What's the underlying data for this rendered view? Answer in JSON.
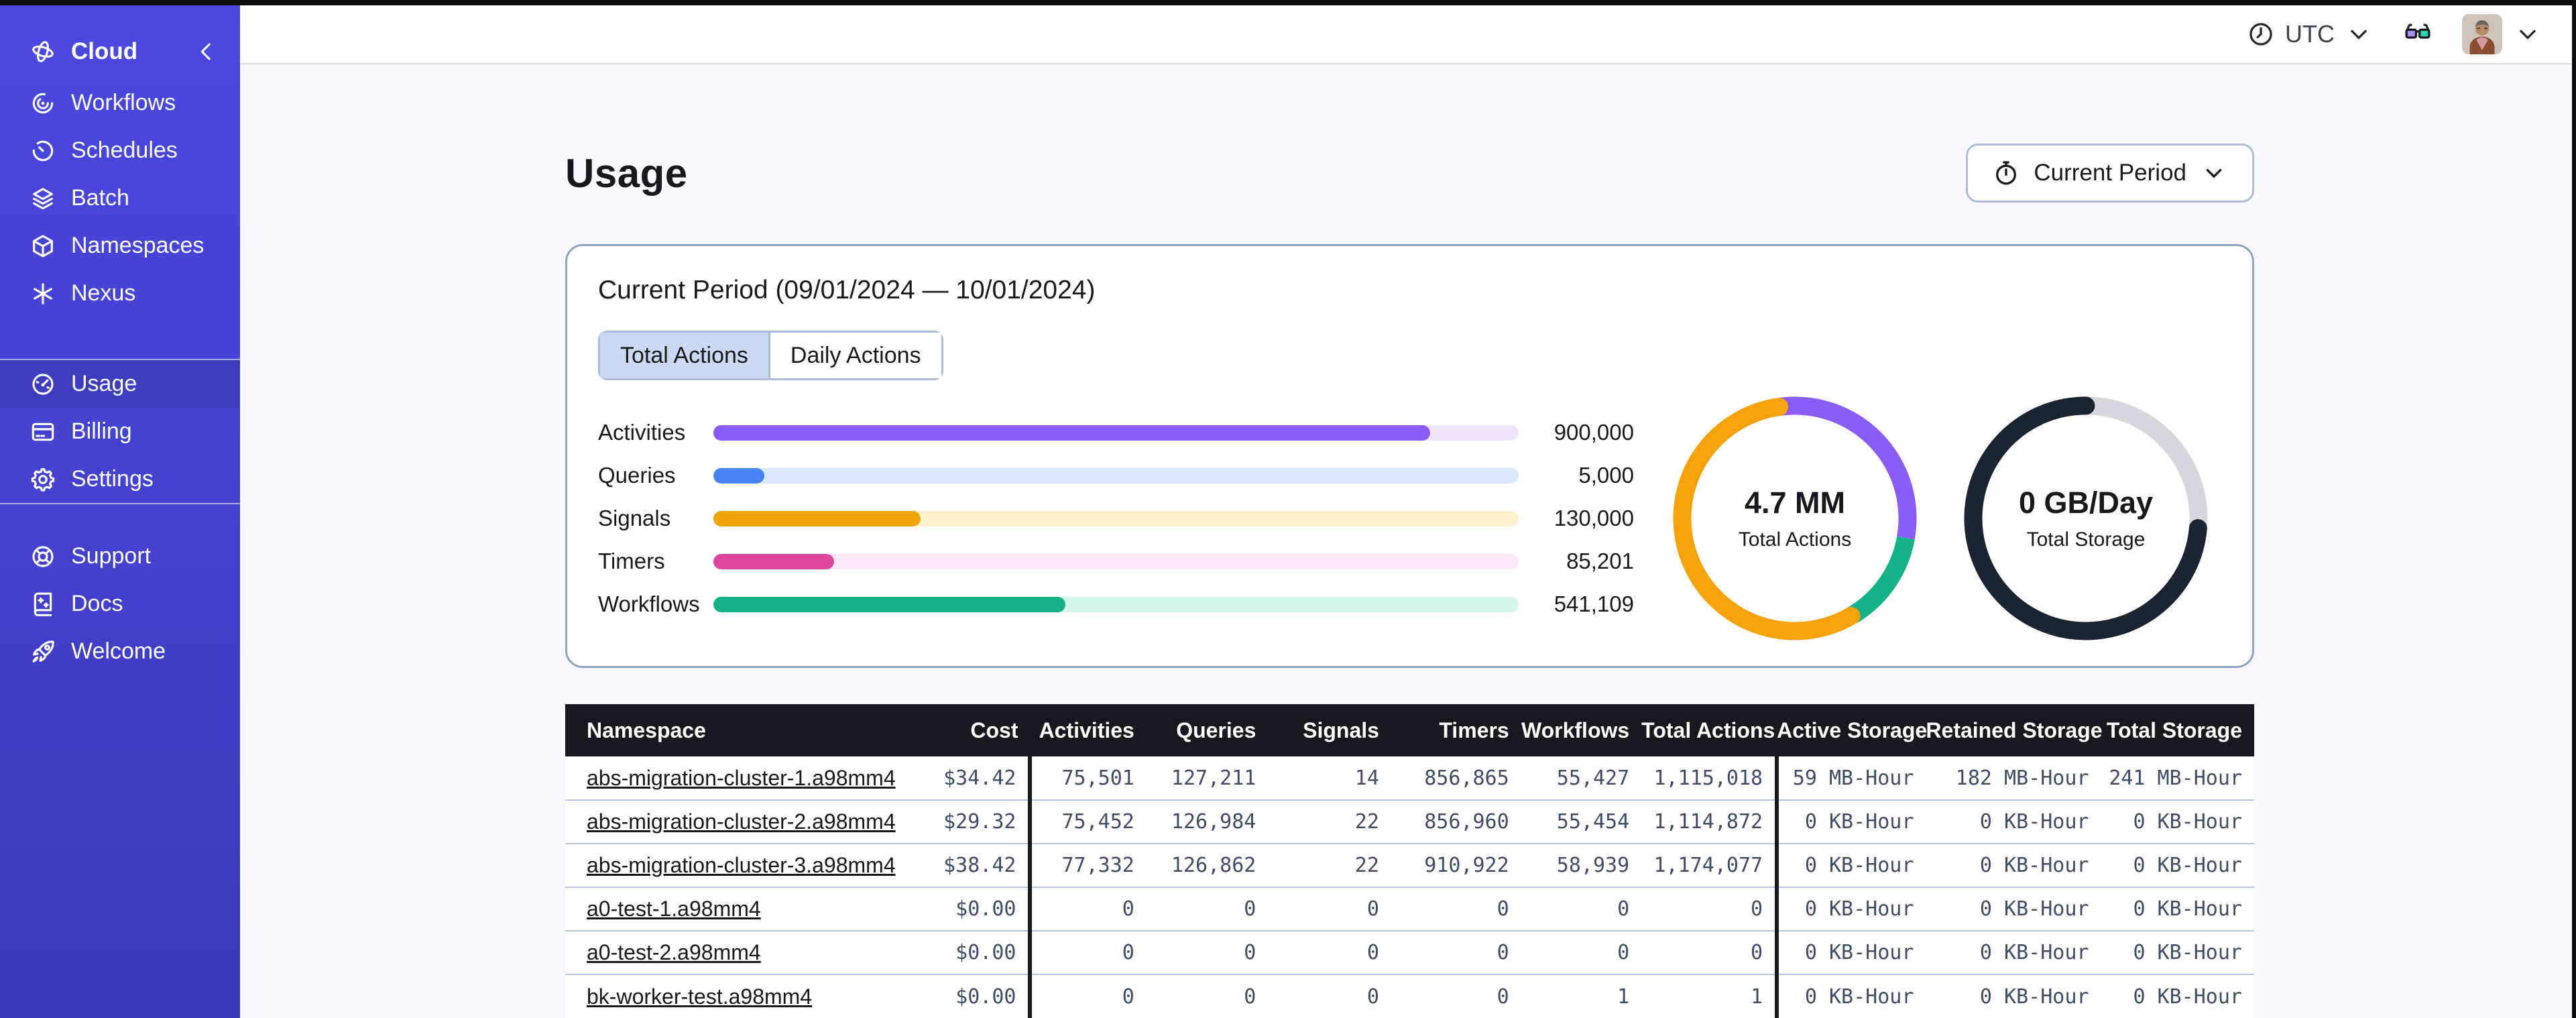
{
  "topbar": {
    "timezone": "UTC",
    "icons": [
      "clock-icon",
      "chevron-down-icon",
      "glasses-icon",
      "user-avatar",
      "chevron-down-icon"
    ]
  },
  "sidebar": {
    "brand": {
      "label": "Cloud",
      "icon": "cloud-logo-icon",
      "collapse_icon": "chevron-left-icon"
    },
    "sections": [
      {
        "items": [
          {
            "label": "Workflows",
            "icon": "workflows-icon",
            "active": false
          },
          {
            "label": "Schedules",
            "icon": "schedules-icon",
            "active": false
          },
          {
            "label": "Batch",
            "icon": "batch-icon",
            "active": false
          },
          {
            "label": "Namespaces",
            "icon": "namespaces-icon",
            "active": false
          },
          {
            "label": "Nexus",
            "icon": "nexus-icon",
            "active": false
          }
        ]
      },
      {
        "items": [
          {
            "label": "Usage",
            "icon": "usage-icon",
            "active": true
          },
          {
            "label": "Billing",
            "icon": "billing-icon",
            "active": false
          },
          {
            "label": "Settings",
            "icon": "settings-icon",
            "active": false
          }
        ]
      },
      {
        "items": [
          {
            "label": "Support",
            "icon": "support-icon",
            "active": false
          },
          {
            "label": "Docs",
            "icon": "docs-icon",
            "active": false
          },
          {
            "label": "Welcome",
            "icon": "welcome-icon",
            "active": false
          }
        ]
      }
    ]
  },
  "header": {
    "title": "Usage",
    "period_button": {
      "label": "Current Period",
      "icon": "stopwatch-icon"
    }
  },
  "usage_panel": {
    "heading": "Current Period (09/01/2024 — 10/01/2024)",
    "tabs": [
      {
        "label": "Total Actions",
        "active": true
      },
      {
        "label": "Daily Actions",
        "active": false
      }
    ],
    "chart_data": {
      "type": "bar",
      "categories": [
        "Activities",
        "Queries",
        "Signals",
        "Timers",
        "Workflows"
      ],
      "values": [
        900000,
        5000,
        130000,
        85201,
        541109
      ],
      "value_labels": [
        "900,000",
        "5,000",
        "130,000",
        "85,201",
        "541,109"
      ],
      "bar_fill_pct": [
        89,
        6.3,
        25.7,
        15,
        43.7
      ],
      "bar_colors": [
        {
          "fill": "#8a5cf5",
          "track": "#ece5fb"
        },
        {
          "fill": "#4584f4",
          "track": "#dce8fb"
        },
        {
          "fill": "#f0a30b",
          "track": "#fcf0cd"
        },
        {
          "fill": "#e0459c",
          "track": "#fce8f6"
        },
        {
          "fill": "#14b387",
          "track": "#d7f6ea"
        }
      ],
      "title": "",
      "xlabel": "",
      "ylabel": ""
    },
    "donuts": [
      {
        "value": "4.7 MM",
        "label": "Total Actions",
        "segments": [
          {
            "color": "#8a5cf5",
            "start_deg": -8,
            "sweep_deg": 108,
            "round_cap": false
          },
          {
            "color": "#14b387",
            "start_deg": 100,
            "sweep_deg": 50,
            "round_cap": false
          },
          {
            "color": "#f5a20b",
            "start_deg": 150,
            "sweep_deg": 202,
            "round_cap": true
          }
        ]
      },
      {
        "value": "0 GB/Day",
        "label": "Total Storage",
        "segments": [
          {
            "color": "#d5d7db",
            "start_deg": 0,
            "sweep_deg": 95,
            "round_cap": false
          },
          {
            "color": "#1c2433",
            "start_deg": 95,
            "sweep_deg": 265,
            "round_cap": true
          }
        ]
      }
    ]
  },
  "table": {
    "columns": [
      {
        "label": "Namespace",
        "align": "left",
        "group_start": false
      },
      {
        "label": "Cost",
        "align": "right",
        "group_start": false
      },
      {
        "label": "Activities",
        "align": "right",
        "group_start": true
      },
      {
        "label": "Queries",
        "align": "right",
        "group_start": false
      },
      {
        "label": "Signals",
        "align": "right",
        "group_start": false
      },
      {
        "label": "Timers",
        "align": "right",
        "group_start": false
      },
      {
        "label": "Workflows",
        "align": "right",
        "group_start": false
      },
      {
        "label": "Total Actions",
        "align": "right",
        "group_start": false
      },
      {
        "label": "Active Storage",
        "align": "right",
        "group_start": true
      },
      {
        "label": "Retained Storage",
        "align": "right",
        "group_start": false
      },
      {
        "label": "Total Storage",
        "align": "right",
        "group_start": false
      }
    ],
    "rows": [
      [
        "abs-migration-cluster-1.a98mm4",
        "$34.42",
        "75,501",
        "127,211",
        "14",
        "856,865",
        "55,427",
        "1,115,018",
        "59 MB-Hour",
        "182 MB-Hour",
        "241 MB-Hour"
      ],
      [
        "abs-migration-cluster-2.a98mm4",
        "$29.32",
        "75,452",
        "126,984",
        "22",
        "856,960",
        "55,454",
        "1,114,872",
        "0 KB-Hour",
        "0 KB-Hour",
        "0 KB-Hour"
      ],
      [
        "abs-migration-cluster-3.a98mm4",
        "$38.42",
        "77,332",
        "126,862",
        "22",
        "910,922",
        "58,939",
        "1,174,077",
        "0 KB-Hour",
        "0 KB-Hour",
        "0 KB-Hour"
      ],
      [
        "a0-test-1.a98mm4",
        "$0.00",
        "0",
        "0",
        "0",
        "0",
        "0",
        "0",
        "0 KB-Hour",
        "0 KB-Hour",
        "0 KB-Hour"
      ],
      [
        "a0-test-2.a98mm4",
        "$0.00",
        "0",
        "0",
        "0",
        "0",
        "0",
        "0",
        "0 KB-Hour",
        "0 KB-Hour",
        "0 KB-Hour"
      ],
      [
        "bk-worker-test.a98mm4",
        "$0.00",
        "0",
        "0",
        "0",
        "0",
        "1",
        "1",
        "0 KB-Hour",
        "0 KB-Hour",
        "0 KB-Hour"
      ]
    ]
  }
}
